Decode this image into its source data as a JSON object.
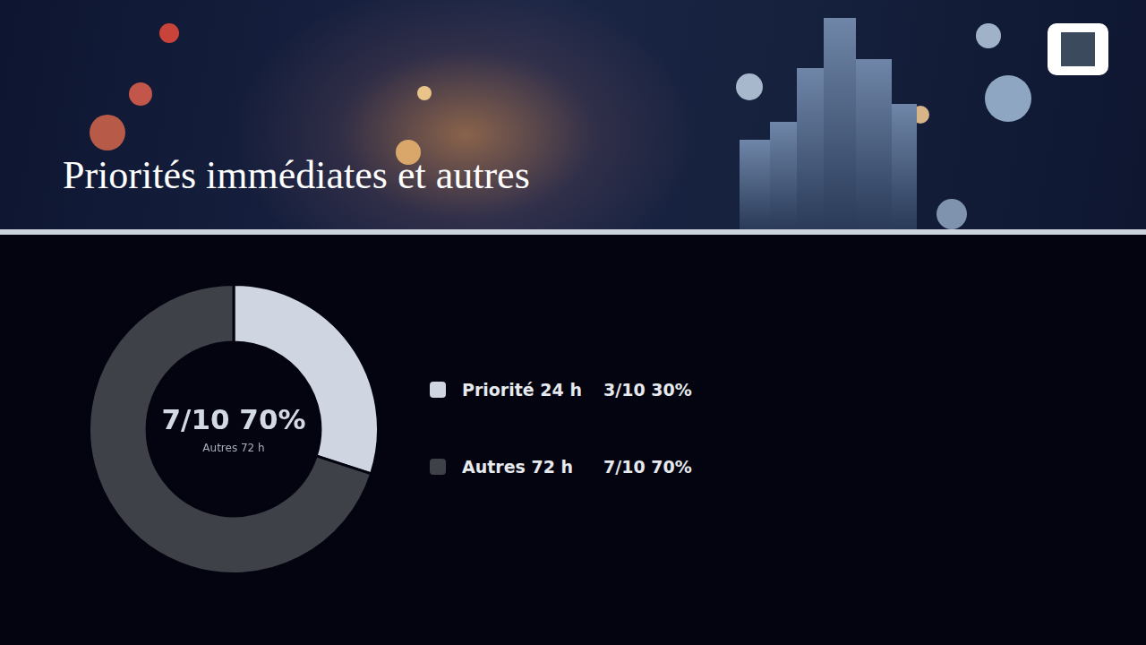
{
  "chart_data": {
    "type": "doughnut",
    "title": "Priorités immédiates et autres",
    "categories": [
      "Priorité 24 h",
      "Autres 72 h"
    ],
    "values": [
      30,
      70
    ],
    "value_labels": [
      "3/10 30%",
      "7/10 70%"
    ],
    "colors": [
      "#cfd6e1",
      "#3e4148"
    ],
    "legend": "right",
    "center_text": "7/10 70%",
    "center_subtitle": "Autres 72 h"
  }
}
